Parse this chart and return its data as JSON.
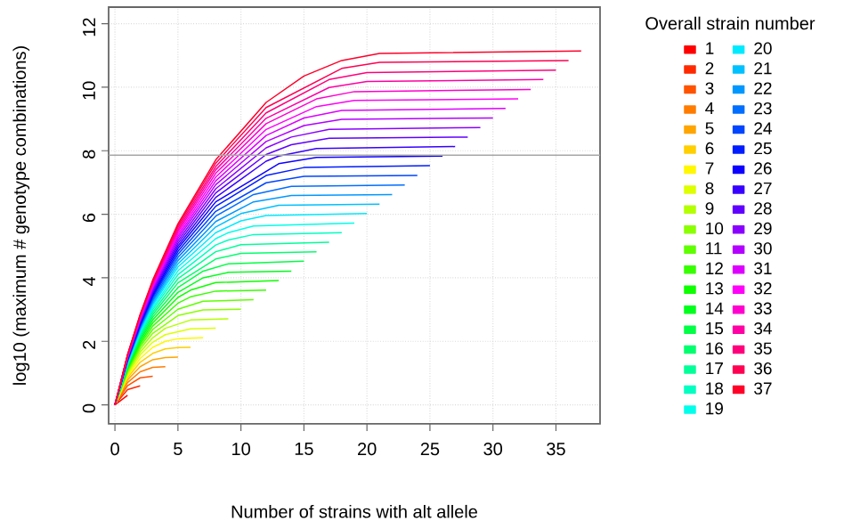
{
  "chart_data": {
    "type": "line",
    "xlabel": "Number of strains with alt allele",
    "ylabel": "log10 (maximum # genotype combinations)",
    "legend_title": "Overall strain number",
    "xlim": [
      -0.5,
      38.5
    ],
    "ylim": [
      -0.6,
      12.52
    ],
    "xticks": [
      0,
      5,
      10,
      15,
      20,
      25,
      30,
      35
    ],
    "yticks": [
      0,
      2,
      4,
      6,
      8,
      10,
      12
    ],
    "grid": true,
    "legend": "right",
    "ref_lines": [
      {
        "axis": "y",
        "value": 7.86,
        "color": "#a6a6a6"
      }
    ],
    "series": [
      {
        "name": "1",
        "color": "#FF0000",
        "x": [
          0,
          1
        ],
        "values": [
          0,
          0.3
        ]
      },
      {
        "name": "2",
        "color": "#FF2900",
        "x": [
          0,
          1,
          2
        ],
        "values": [
          0,
          0.48,
          0.6
        ]
      },
      {
        "name": "3",
        "color": "#FF5300",
        "x": [
          0,
          1,
          2,
          3
        ],
        "values": [
          0,
          0.6,
          0.85,
          0.9
        ]
      },
      {
        "name": "4",
        "color": "#FF7C00",
        "x": [
          0,
          1,
          2,
          3,
          4
        ],
        "values": [
          0,
          0.7,
          1.04,
          1.18,
          1.2
        ]
      },
      {
        "name": "5",
        "color": "#FFA500",
        "x": [
          0,
          1,
          2,
          3,
          4,
          5
        ],
        "values": [
          0,
          0.78,
          1.2,
          1.42,
          1.49,
          1.5
        ]
      },
      {
        "name": "6",
        "color": "#FFCF00",
        "x": [
          0,
          1,
          2,
          3,
          4,
          5,
          6
        ],
        "values": [
          0,
          0.85,
          1.34,
          1.62,
          1.76,
          1.8,
          1.81
        ]
      },
      {
        "name": "7",
        "color": "#FFF800",
        "x": [
          0,
          1,
          2,
          3,
          4,
          5,
          6,
          7
        ],
        "values": [
          0,
          0.9,
          1.46,
          1.81,
          2,
          2.08,
          2.1,
          2.11
        ]
      },
      {
        "name": "8",
        "color": "#DDFF00",
        "x": [
          0,
          1,
          2,
          3,
          4,
          6,
          8
        ],
        "values": [
          0,
          0.95,
          1.57,
          1.97,
          2.21,
          2.39,
          2.41
        ]
      },
      {
        "name": "9",
        "color": "#B3FF00",
        "x": [
          0,
          1,
          2,
          3,
          4,
          6,
          9
        ],
        "values": [
          0,
          1,
          1.66,
          2.11,
          2.41,
          2.67,
          2.71
        ]
      },
      {
        "name": "10",
        "color": "#8AFF00",
        "x": [
          0,
          1,
          2,
          3,
          5,
          7,
          10
        ],
        "values": [
          0,
          1.04,
          1.75,
          2.25,
          2.81,
          2.99,
          3.01
        ]
      },
      {
        "name": "11",
        "color": "#60FF00",
        "x": [
          0,
          1,
          2,
          3,
          5,
          7,
          11
        ],
        "values": [
          0,
          1.08,
          1.83,
          2.37,
          3.01,
          3.26,
          3.31
        ]
      },
      {
        "name": "12",
        "color": "#37FF00",
        "x": [
          0,
          1,
          2,
          3,
          5,
          6,
          8,
          12
        ],
        "values": [
          0,
          1.11,
          1.9,
          2.48,
          3.2,
          3.4,
          3.58,
          3.61
        ]
      },
      {
        "name": "13",
        "color": "#0EFF00",
        "x": [
          0,
          1,
          2,
          3,
          5,
          6,
          8,
          13
        ],
        "values": [
          0,
          1.15,
          1.96,
          2.58,
          3.38,
          3.61,
          3.85,
          3.91
        ]
      },
      {
        "name": "14",
        "color": "#00FF1C",
        "x": [
          0,
          1,
          2,
          3,
          5,
          7,
          9,
          14
        ],
        "values": [
          0,
          1.18,
          2.03,
          2.67,
          3.54,
          4,
          4.17,
          4.21
        ]
      },
      {
        "name": "15",
        "color": "#00FF45",
        "x": [
          0,
          1,
          2,
          3,
          5,
          7,
          9,
          15
        ],
        "values": [
          0,
          1.2,
          2.08,
          2.76,
          3.69,
          4.21,
          4.44,
          4.52
        ]
      },
      {
        "name": "16",
        "color": "#00FF6E",
        "x": [
          0,
          1,
          2,
          3,
          5,
          8,
          10,
          16
        ],
        "values": [
          0,
          1.23,
          2.14,
          2.84,
          3.84,
          4.59,
          4.77,
          4.82
        ]
      },
      {
        "name": "17",
        "color": "#00FF98",
        "x": [
          0,
          1,
          2,
          3,
          5,
          8,
          10,
          17
        ],
        "values": [
          0,
          1.26,
          2.19,
          2.92,
          3.97,
          4.82,
          5.04,
          5.12
        ]
      },
      {
        "name": "18",
        "color": "#00FFC1",
        "x": [
          0,
          1,
          2,
          3,
          5,
          8,
          9,
          11,
          18
        ],
        "values": [
          0,
          1.28,
          2.24,
          3,
          4.1,
          5.03,
          5.19,
          5.36,
          5.42
        ]
      },
      {
        "name": "19",
        "color": "#00FFEA",
        "x": [
          0,
          1,
          2,
          3,
          5,
          8,
          9,
          11,
          19
        ],
        "values": [
          0,
          1.3,
          2.28,
          3.06,
          4.22,
          5.23,
          5.42,
          5.63,
          5.72
        ]
      },
      {
        "name": "20",
        "color": "#00EAFF",
        "x": [
          0,
          1,
          2,
          3,
          5,
          8,
          10,
          12,
          20
        ],
        "values": [
          0,
          1.32,
          2.32,
          3.13,
          4.34,
          5.42,
          5.79,
          5.96,
          6.02
        ]
      },
      {
        "name": "21",
        "color": "#00C1FF",
        "x": [
          0,
          1,
          2,
          3,
          5,
          8,
          10,
          13,
          21
        ],
        "values": [
          0,
          1.34,
          2.37,
          3.19,
          4.44,
          5.6,
          6.02,
          6.28,
          6.32
        ]
      },
      {
        "name": "22",
        "color": "#0098FF",
        "x": [
          0,
          1,
          2,
          3,
          5,
          8,
          11,
          14,
          22
        ],
        "values": [
          0,
          1.36,
          2.41,
          3.25,
          4.54,
          5.77,
          6.39,
          6.59,
          6.62
        ]
      },
      {
        "name": "23",
        "color": "#006EFF",
        "x": [
          0,
          1,
          2,
          3,
          5,
          8,
          11,
          14,
          23
        ],
        "values": [
          0,
          1.38,
          2.44,
          3.31,
          4.64,
          5.94,
          6.62,
          6.88,
          6.92
        ]
      },
      {
        "name": "24",
        "color": "#0045FF",
        "x": [
          0,
          1,
          2,
          3,
          5,
          8,
          12,
          15,
          24
        ],
        "values": [
          0,
          1.4,
          2.48,
          3.37,
          4.74,
          6.09,
          6.99,
          7.19,
          7.22
        ]
      },
      {
        "name": "25",
        "color": "#001CFF",
        "x": [
          0,
          1,
          2,
          3,
          5,
          8,
          12,
          15,
          25
        ],
        "values": [
          0,
          1.42,
          2.51,
          3.42,
          4.83,
          6.25,
          7.22,
          7.47,
          7.53
        ]
      },
      {
        "name": "26",
        "color": "#0E00FF",
        "x": [
          0,
          1,
          2,
          3,
          5,
          8,
          13,
          16,
          26
        ],
        "values": [
          0,
          1.43,
          2.55,
          3.47,
          4.92,
          6.39,
          7.59,
          7.79,
          7.83
        ]
      },
      {
        "name": "27",
        "color": "#3700FF",
        "x": [
          0,
          1,
          2,
          3,
          5,
          8,
          12,
          13,
          16,
          27
        ],
        "values": [
          0,
          1.45,
          2.58,
          3.52,
          5,
          6.53,
          7.67,
          7.83,
          8.07,
          8.13
        ]
      },
      {
        "name": "28",
        "color": "#6000FF",
        "x": [
          0,
          1,
          2,
          3,
          5,
          8,
          12,
          14,
          17,
          28
        ],
        "values": [
          0,
          1.46,
          2.61,
          3.57,
          5.08,
          6.67,
          7.88,
          8.19,
          8.39,
          8.43
        ]
      },
      {
        "name": "29",
        "color": "#8A00FF",
        "x": [
          0,
          1,
          2,
          3,
          5,
          8,
          12,
          14,
          17,
          29
        ],
        "values": [
          0,
          1.48,
          2.64,
          3.61,
          5.16,
          6.8,
          8.09,
          8.43,
          8.67,
          8.73
        ]
      },
      {
        "name": "30",
        "color": "#B300FF",
        "x": [
          0,
          1,
          2,
          3,
          5,
          8,
          12,
          15,
          18,
          30
        ],
        "values": [
          0,
          1.49,
          2.67,
          3.66,
          5.24,
          6.93,
          8.29,
          8.79,
          8.99,
          9.03
        ]
      },
      {
        "name": "31",
        "color": "#DD00FF",
        "x": [
          0,
          1,
          2,
          3,
          5,
          8,
          12,
          15,
          18,
          31
        ],
        "values": [
          0,
          1.51,
          2.7,
          3.7,
          5.31,
          7.05,
          8.48,
          9.03,
          9.27,
          9.33
        ]
      },
      {
        "name": "32",
        "color": "#FF00F8",
        "x": [
          0,
          1,
          2,
          3,
          5,
          8,
          12,
          16,
          19,
          32
        ],
        "values": [
          0,
          1.52,
          2.72,
          3.74,
          5.38,
          7.17,
          8.67,
          9.39,
          9.58,
          9.63
        ]
      },
      {
        "name": "33",
        "color": "#FF00CF",
        "x": [
          0,
          1,
          2,
          3,
          5,
          8,
          12,
          16,
          19,
          33
        ],
        "values": [
          0,
          1.53,
          2.75,
          3.78,
          5.45,
          7.29,
          8.85,
          9.63,
          9.86,
          9.93
        ]
      },
      {
        "name": "34",
        "color": "#FF00A5",
        "x": [
          0,
          1,
          2,
          3,
          5,
          8,
          12,
          17,
          20,
          34
        ],
        "values": [
          0,
          1.54,
          2.78,
          3.82,
          5.51,
          7.4,
          9.02,
          9.99,
          10.18,
          10.24
        ]
      },
      {
        "name": "35",
        "color": "#FF007C",
        "x": [
          0,
          1,
          2,
          3,
          5,
          8,
          12,
          17,
          20,
          35
        ],
        "values": [
          0,
          1.56,
          2.8,
          3.86,
          5.58,
          7.5,
          9.19,
          10.24,
          10.46,
          10.54
        ]
      },
      {
        "name": "36",
        "color": "#FF0053",
        "x": [
          0,
          1,
          2,
          3,
          5,
          8,
          12,
          18,
          21,
          36
        ],
        "values": [
          0,
          1.57,
          2.82,
          3.89,
          5.64,
          7.61,
          9.36,
          10.59,
          10.78,
          10.84
        ]
      },
      {
        "name": "37",
        "color": "#FF0029",
        "x": [
          0,
          1,
          2,
          3,
          5,
          8,
          12,
          15,
          18,
          21,
          37
        ],
        "values": [
          0,
          1.58,
          2.85,
          3.93,
          5.7,
          7.71,
          9.52,
          10.35,
          10.84,
          11.06,
          11.14
        ]
      }
    ]
  }
}
